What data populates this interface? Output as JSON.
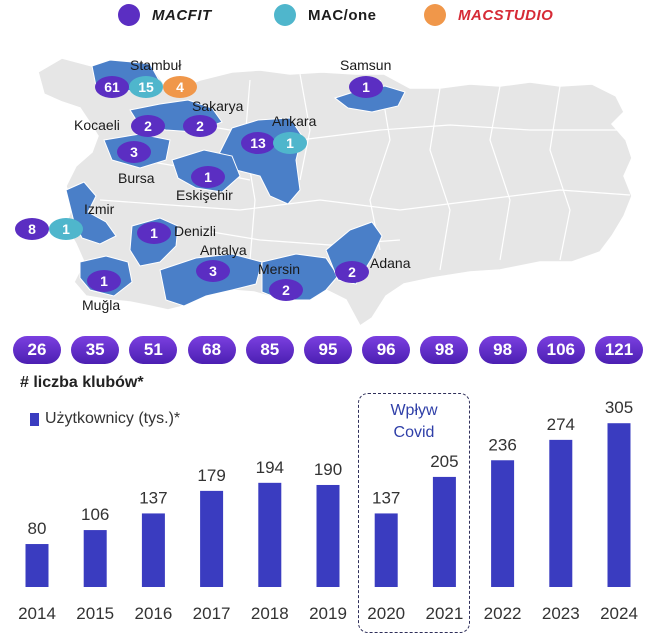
{
  "legend": [
    {
      "name": "MACFIT",
      "color": "#5b2ec2"
    },
    {
      "name": "MAC/one",
      "color": "#4fb6cc"
    },
    {
      "name": "MACSTUDIO",
      "color": "#f0974a"
    }
  ],
  "map": {
    "cities": [
      {
        "name": "Stambuł",
        "pins": [
          {
            "value": "61",
            "brand": "MACFIT"
          },
          {
            "value": "15",
            "brand": "MAC/one"
          },
          {
            "value": "4",
            "brand": "MACSTUDIO"
          }
        ]
      },
      {
        "name": "Samsun",
        "pins": [
          {
            "value": "1",
            "brand": "MACFIT"
          }
        ]
      },
      {
        "name": "Sakarya",
        "pins": [
          {
            "value": "2",
            "brand": "MACFIT"
          }
        ]
      },
      {
        "name": "Kocaeli",
        "pins": [
          {
            "value": "2",
            "brand": "MACFIT"
          }
        ]
      },
      {
        "name": "Ankara",
        "pins": [
          {
            "value": "13",
            "brand": "MACFIT"
          },
          {
            "value": "1",
            "brand": "MAC/one"
          }
        ]
      },
      {
        "name": "Bursa",
        "pins": [
          {
            "value": "3",
            "brand": "MACFIT"
          }
        ]
      },
      {
        "name": "Eskişehir",
        "pins": [
          {
            "value": "1",
            "brand": "MACFIT"
          }
        ]
      },
      {
        "name": "Izmir",
        "pins": [
          {
            "value": "8",
            "brand": "MACFIT"
          },
          {
            "value": "1",
            "brand": "MAC/one"
          }
        ]
      },
      {
        "name": "Denizli",
        "pins": [
          {
            "value": "1",
            "brand": "MACFIT"
          }
        ]
      },
      {
        "name": "Antalya",
        "pins": [
          {
            "value": "3",
            "brand": "MACFIT"
          }
        ]
      },
      {
        "name": "Adana",
        "pins": [
          {
            "value": "2",
            "brand": "MACFIT"
          }
        ]
      },
      {
        "name": "Mersin",
        "pins": [
          {
            "value": "2",
            "brand": "MACFIT"
          }
        ]
      },
      {
        "name": "Muğla",
        "pins": [
          {
            "value": "1",
            "brand": "MACFIT"
          }
        ]
      }
    ]
  },
  "clubs_label": "# liczba klubów*",
  "users_label": "Użytkownicy (tys.)*",
  "covid_label_line1": "Wpływ",
  "covid_label_line2": "Covid",
  "chart_data": {
    "type": "bar",
    "categories": [
      "2014",
      "2015",
      "2016",
      "2017",
      "2018",
      "2019",
      "2020",
      "2021",
      "2022",
      "2023",
      "2024"
    ],
    "clubs": [
      26,
      35,
      51,
      68,
      85,
      95,
      96,
      98,
      98,
      106,
      121
    ],
    "series": [
      {
        "name": "Użytkownicy (tys.)*",
        "values": [
          80,
          106,
          137,
          179,
          194,
          190,
          137,
          205,
          236,
          274,
          305
        ]
      }
    ],
    "highlight": {
      "label": "Wpływ Covid",
      "categories": [
        "2020",
        "2021"
      ]
    },
    "grid": false,
    "colors": {
      "bar": "#3a3cc0",
      "pill": "#5b2ec2"
    }
  }
}
